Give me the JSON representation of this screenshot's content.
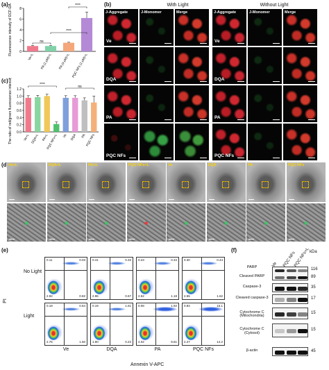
{
  "panel_labels": [
    "(a)",
    "(b)",
    "(c)",
    "(d)",
    "(e)",
    "(f)"
  ],
  "panel_a": {
    "chart_data": {
      "type": "bar",
      "ylabel": "Fluorescence intensity of DCF-DA",
      "categories": [
        "Ve+L",
        "PA (1 μM)+L",
        "PA (4 μM)+L",
        "PQC NFs (1 μM)+L"
      ],
      "values": [
        1.0,
        1.0,
        1.6,
        6.2
      ],
      "errors": [
        0.1,
        0.1,
        0.1,
        1.1
      ],
      "colors": [
        "#f07a8c",
        "#7fd1a8",
        "#f4a77a",
        "#b48ad6"
      ],
      "ylim": [
        0,
        8
      ],
      "yticks": [
        "0",
        "2",
        "4",
        "6",
        "8"
      ],
      "significance": [
        "ns",
        "****",
        "****"
      ]
    }
  },
  "panel_c": {
    "chart_data": {
      "type": "bar",
      "ylabel": "The ratio of red/green fluorescence intensity",
      "categories": [
        "Ve+L",
        "DQA+L",
        "PA+L",
        "PQC NFs+L",
        "Ve",
        "DQA",
        "PA",
        "PQC NFs"
      ],
      "values": [
        0.95,
        0.97,
        1.0,
        0.22,
        0.95,
        0.95,
        0.88,
        0.82
      ],
      "errors": [
        0.06,
        0.05,
        0.05,
        0.06,
        0.06,
        0.06,
        0.07,
        0.18
      ],
      "colors": [
        "#f07a8c",
        "#8ad6a0",
        "#f0c85a",
        "#4fc16b",
        "#7f9fdc",
        "#e79ad6",
        "#bfbfbf",
        "#f4b07a"
      ],
      "ylim": [
        0,
        1.2
      ],
      "yticks": [
        "0.0",
        "0.2",
        "0.4",
        "0.6",
        "0.8",
        "1.0",
        "1.2"
      ],
      "significance": [
        "****",
        "ns"
      ]
    }
  },
  "panel_b": {
    "with_light": "With Light",
    "without_light": "Without Light",
    "columns": [
      "J-Aggregate",
      "J-Monomer",
      "Merge",
      "J-Aggregate",
      "J-Monomer",
      "Merge"
    ],
    "rows": [
      "Ve",
      "DQA",
      "PA",
      "PQC NFs"
    ]
  },
  "panel_d": {
    "labels": [
      "Ve+L",
      "DQA+L",
      "PA+L",
      "PQC NFs+L",
      "Ve",
      "DQA",
      "PA",
      "PQC NFs"
    ]
  },
  "panel_e": {
    "row_labels": [
      "No Light",
      "Light"
    ],
    "col_labels": [
      "Ve",
      "DQA",
      "PA",
      "PQC NFs"
    ],
    "xlabel": "Annexin V-APC",
    "ylabel": "PI",
    "quadrants": [
      [
        [
          "0.11",
          "0.03",
          "2.92",
          "0.82"
        ],
        [
          "0.41",
          "0.33",
          "2.96",
          "0.67"
        ],
        [
          "0.23",
          "0.34",
          "2.52",
          "1.18"
        ],
        [
          "0.30",
          "0.44",
          "2.55",
          "1.62"
        ]
      ],
      [
        [
          "0.18",
          "0.64",
          "2.75",
          "1.50"
        ],
        [
          "0.19",
          "1.61",
          "1.90",
          "0.23"
        ],
        [
          "0.08",
          "1.92",
          "4.02",
          "9.61"
        ],
        [
          "0.84",
          "15.1",
          "2.27",
          "14.2"
        ]
      ]
    ]
  },
  "panel_f": {
    "lanes": [
      "Ve",
      "PQC NFs",
      "PQC NFs+L"
    ],
    "kda_header": "kDa",
    "blots": [
      {
        "name": "PARP",
        "name2": "Cleaved PARP",
        "kda": "116",
        "kda2": "89"
      },
      {
        "name": "Caspase-3",
        "kda": "35"
      },
      {
        "name": "Cleaved caspase-3",
        "kda": "17"
      },
      {
        "name": "Cytochrome C (Mitochondria)",
        "kda": "15"
      },
      {
        "name": "Cytochrome C (Cytosol)",
        "kda": "15"
      },
      {
        "name": "β-actin",
        "kda": "45"
      }
    ]
  }
}
